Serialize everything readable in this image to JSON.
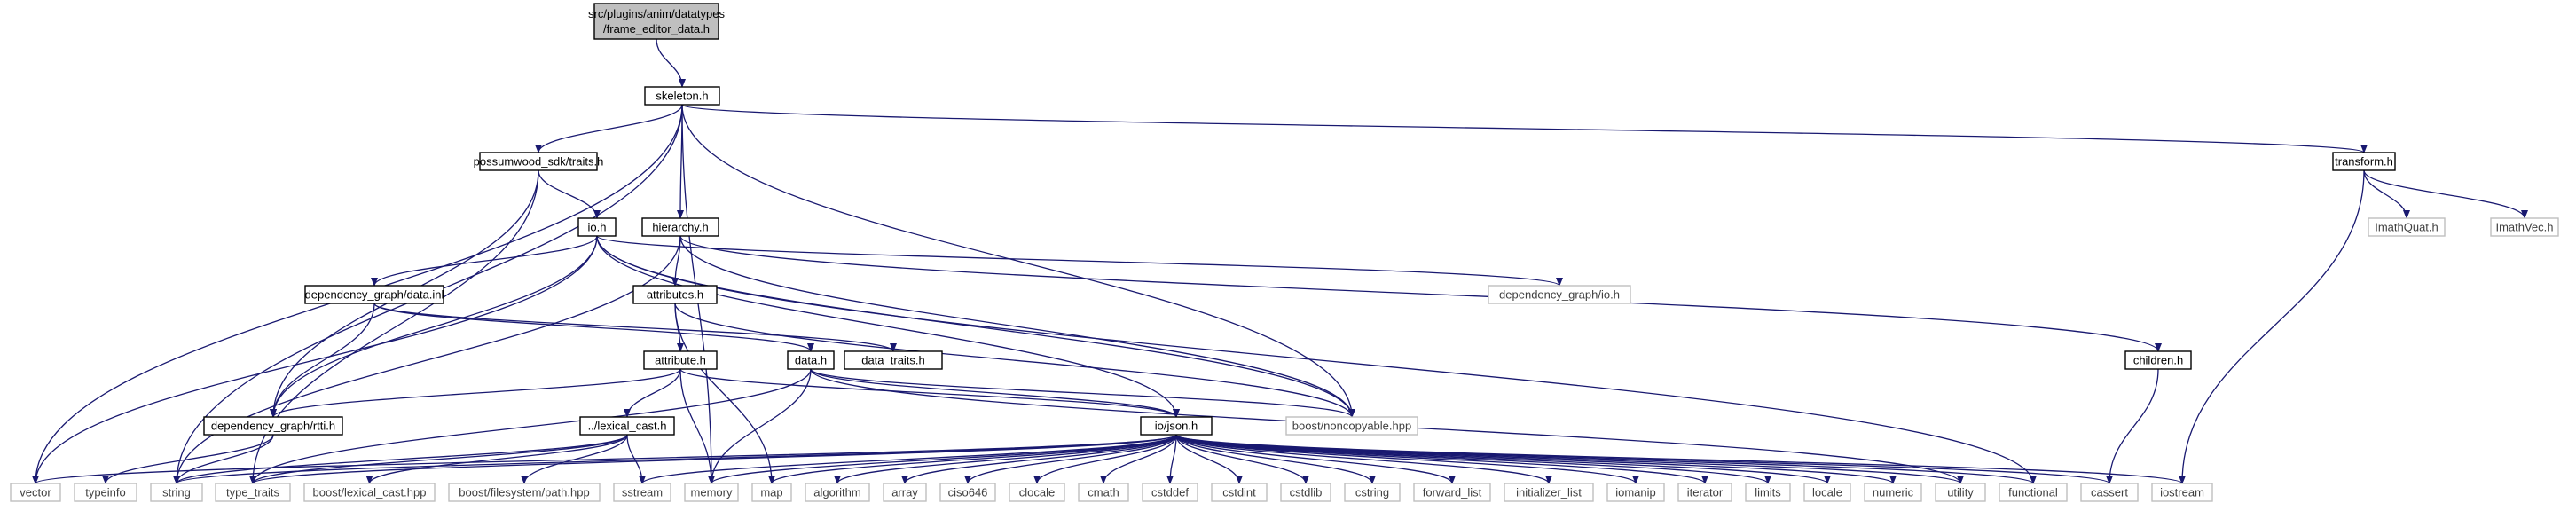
{
  "colors": {
    "edge": "#191970",
    "root_fill": "#bfbfbf",
    "documented_stroke": "#000000",
    "external_stroke": "#bfbfbf",
    "label_documented": "#000000",
    "label_external": "#404040"
  },
  "nodes": [
    {
      "id": "root",
      "label": "src/plugins/anim/datatypes\n/frame_editor_data.h",
      "kind": "root"
    },
    {
      "id": "skeleton",
      "label": "skeleton.h",
      "kind": "documented"
    },
    {
      "id": "traits",
      "label": "possumwood_sdk/traits.h",
      "kind": "documented"
    },
    {
      "id": "hierarchy",
      "label": "hierarchy.h",
      "kind": "documented"
    },
    {
      "id": "transform",
      "label": "transform.h",
      "kind": "documented"
    },
    {
      "id": "io",
      "label": "io.h",
      "kind": "documented"
    },
    {
      "id": "attributes",
      "label": "attributes.h",
      "kind": "documented"
    },
    {
      "id": "dgdata",
      "label": "dependency_graph/data.inl",
      "kind": "documented"
    },
    {
      "id": "dgio",
      "label": "dependency_graph/io.h",
      "kind": "external"
    },
    {
      "id": "imathquat",
      "label": "ImathQuat.h",
      "kind": "external"
    },
    {
      "id": "imathvec",
      "label": "ImathVec.h",
      "kind": "external"
    },
    {
      "id": "attribute",
      "label": "attribute.h",
      "kind": "documented"
    },
    {
      "id": "data",
      "label": "data.h",
      "kind": "documented"
    },
    {
      "id": "datatraits",
      "label": "data_traits.h",
      "kind": "documented"
    },
    {
      "id": "children",
      "label": "children.h",
      "kind": "documented"
    },
    {
      "id": "rtti",
      "label": "dependency_graph/rtti.h",
      "kind": "documented"
    },
    {
      "id": "lexcast",
      "label": "../lexical_cast.h",
      "kind": "documented"
    },
    {
      "id": "json",
      "label": "io/json.h",
      "kind": "documented"
    },
    {
      "id": "noncopy",
      "label": "boost/noncopyable.hpp",
      "kind": "external"
    },
    {
      "id": "vector",
      "label": "vector",
      "kind": "external"
    },
    {
      "id": "typeinfo",
      "label": "typeinfo",
      "kind": "external"
    },
    {
      "id": "string",
      "label": "string",
      "kind": "external"
    },
    {
      "id": "type_traits",
      "label": "type_traits",
      "kind": "external"
    },
    {
      "id": "boostlex",
      "label": "boost/lexical_cast.hpp",
      "kind": "external"
    },
    {
      "id": "boostfs",
      "label": "boost/filesystem/path.hpp",
      "kind": "external"
    },
    {
      "id": "sstream",
      "label": "sstream",
      "kind": "external"
    },
    {
      "id": "memory",
      "label": "memory",
      "kind": "external"
    },
    {
      "id": "map",
      "label": "map",
      "kind": "external"
    },
    {
      "id": "algorithm",
      "label": "algorithm",
      "kind": "external"
    },
    {
      "id": "array",
      "label": "array",
      "kind": "external"
    },
    {
      "id": "ciso646",
      "label": "ciso646",
      "kind": "external"
    },
    {
      "id": "clocale",
      "label": "clocale",
      "kind": "external"
    },
    {
      "id": "cmath",
      "label": "cmath",
      "kind": "external"
    },
    {
      "id": "cstddef",
      "label": "cstddef",
      "kind": "external"
    },
    {
      "id": "cstdint",
      "label": "cstdint",
      "kind": "external"
    },
    {
      "id": "cstdlib",
      "label": "cstdlib",
      "kind": "external"
    },
    {
      "id": "cstring",
      "label": "cstring",
      "kind": "external"
    },
    {
      "id": "forward_list",
      "label": "forward_list",
      "kind": "external"
    },
    {
      "id": "initializer_list",
      "label": "initializer_list",
      "kind": "external"
    },
    {
      "id": "iomanip",
      "label": "iomanip",
      "kind": "external"
    },
    {
      "id": "iterator",
      "label": "iterator",
      "kind": "external"
    },
    {
      "id": "limits",
      "label": "limits",
      "kind": "external"
    },
    {
      "id": "locale",
      "label": "locale",
      "kind": "external"
    },
    {
      "id": "numeric",
      "label": "numeric",
      "kind": "external"
    },
    {
      "id": "utility",
      "label": "utility",
      "kind": "external"
    },
    {
      "id": "functional",
      "label": "functional",
      "kind": "external"
    },
    {
      "id": "cassert",
      "label": "cassert",
      "kind": "external"
    },
    {
      "id": "iostream",
      "label": "iostream",
      "kind": "external"
    }
  ],
  "edges": [
    [
      "root",
      "skeleton"
    ],
    [
      "skeleton",
      "vector"
    ],
    [
      "skeleton",
      "string"
    ],
    [
      "skeleton",
      "traits"
    ],
    [
      "skeleton",
      "hierarchy"
    ],
    [
      "skeleton",
      "memory"
    ],
    [
      "skeleton",
      "noncopy"
    ],
    [
      "skeleton",
      "transform"
    ],
    [
      "traits",
      "io"
    ],
    [
      "traits",
      "rtti"
    ],
    [
      "traits",
      "type_traits"
    ],
    [
      "io",
      "dgdata"
    ],
    [
      "io",
      "rtti"
    ],
    [
      "io",
      "vector"
    ],
    [
      "io",
      "dgio"
    ],
    [
      "io",
      "noncopy"
    ],
    [
      "io",
      "functional"
    ],
    [
      "io",
      "json"
    ],
    [
      "hierarchy",
      "attributes"
    ],
    [
      "hierarchy",
      "children"
    ],
    [
      "hierarchy",
      "noncopy"
    ],
    [
      "hierarchy",
      "string"
    ],
    [
      "attributes",
      "attribute"
    ],
    [
      "attributes",
      "map"
    ],
    [
      "attributes",
      "noncopy"
    ],
    [
      "dgdata",
      "data"
    ],
    [
      "dgdata",
      "rtti"
    ],
    [
      "dgdata",
      "datatraits"
    ],
    [
      "attribute",
      "rtti"
    ],
    [
      "attribute",
      "lexcast"
    ],
    [
      "attribute",
      "memory"
    ],
    [
      "attribute",
      "json"
    ],
    [
      "data",
      "json"
    ],
    [
      "data",
      "memory"
    ],
    [
      "data",
      "type_traits"
    ],
    [
      "data",
      "noncopy"
    ],
    [
      "data",
      "utility"
    ],
    [
      "transform",
      "imathquat"
    ],
    [
      "transform",
      "imathvec"
    ],
    [
      "transform",
      "iostream"
    ],
    [
      "children",
      "cassert"
    ],
    [
      "rtti",
      "typeinfo"
    ],
    [
      "rtti",
      "string"
    ],
    [
      "lexcast",
      "string"
    ],
    [
      "lexcast",
      "boostlex"
    ],
    [
      "lexcast",
      "boostfs"
    ],
    [
      "lexcast",
      "sstream"
    ],
    [
      "lexcast",
      "type_traits"
    ],
    [
      "json",
      "vector"
    ],
    [
      "json",
      "string"
    ],
    [
      "json",
      "type_traits"
    ],
    [
      "json",
      "sstream"
    ],
    [
      "json",
      "memory"
    ],
    [
      "json",
      "map"
    ],
    [
      "json",
      "algorithm"
    ],
    [
      "json",
      "array"
    ],
    [
      "json",
      "ciso646"
    ],
    [
      "json",
      "clocale"
    ],
    [
      "json",
      "cmath"
    ],
    [
      "json",
      "cstddef"
    ],
    [
      "json",
      "cstdint"
    ],
    [
      "json",
      "cstdlib"
    ],
    [
      "json",
      "cstring"
    ],
    [
      "json",
      "forward_list"
    ],
    [
      "json",
      "initializer_list"
    ],
    [
      "json",
      "iomanip"
    ],
    [
      "json",
      "iterator"
    ],
    [
      "json",
      "limits"
    ],
    [
      "json",
      "locale"
    ],
    [
      "json",
      "numeric"
    ],
    [
      "json",
      "utility"
    ],
    [
      "json",
      "functional"
    ],
    [
      "json",
      "cassert"
    ],
    [
      "json",
      "iostream"
    ]
  ]
}
